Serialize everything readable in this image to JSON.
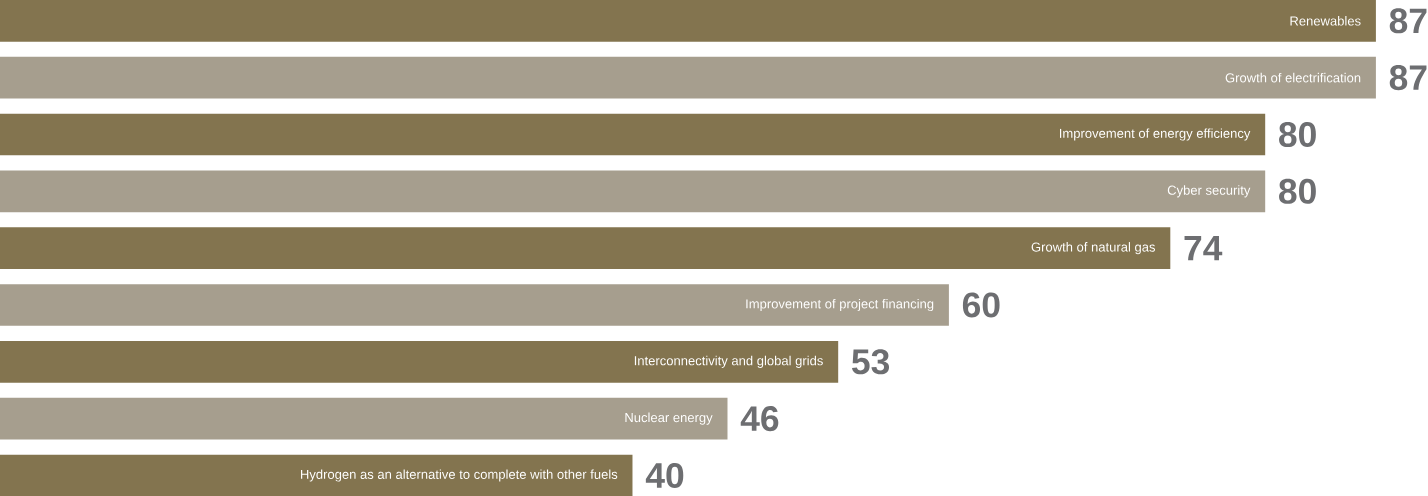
{
  "chart_data": {
    "type": "bar",
    "orientation": "horizontal",
    "data_labels": true,
    "categories": [
      "Renewables",
      "Growth of electrification",
      "Improvement of energy efficiency",
      "Cyber security",
      "Growth of natural gas",
      "Improvement of project financing",
      "Interconnectivity and global grids",
      "Nuclear energy",
      "Hydrogen as an alternative to complete with other fuels"
    ],
    "values": [
      87,
      87,
      80,
      80,
      74,
      60,
      53,
      46,
      40
    ],
    "colors": [
      "#83744f",
      "#a69e8e",
      "#83744f",
      "#a69e8e",
      "#83744f",
      "#a69e8e",
      "#83744f",
      "#a69e8e",
      "#83744f"
    ]
  }
}
